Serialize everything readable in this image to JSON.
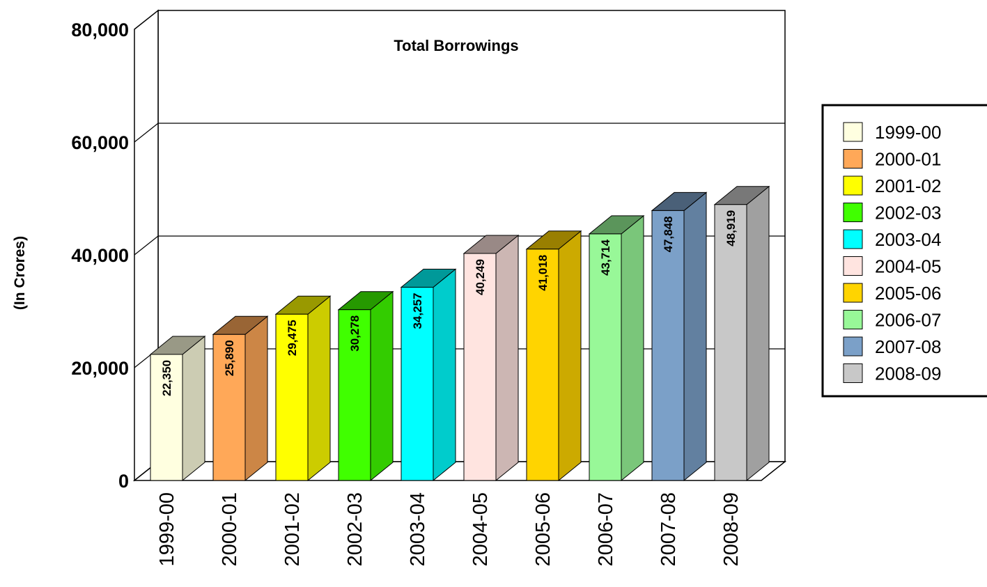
{
  "chart_data": {
    "type": "bar",
    "title": "Total Borrowings",
    "ylabel": "(In Crores)",
    "xlabel": "",
    "categories": [
      "1999-00",
      "2000-01",
      "2001-02",
      "2002-03",
      "2003-04",
      "2004-05",
      "2005-06",
      "2006-07",
      "2007-08",
      "2008-09"
    ],
    "values": [
      22350,
      25890,
      29475,
      30278,
      34257,
      40249,
      41018,
      43714,
      47848,
      48919
    ],
    "data_labels": [
      "22,350",
      "25,890",
      "29,475",
      "30,278",
      "34,257",
      "40,249",
      "41,018",
      "43,714",
      "47,848",
      "48,919"
    ],
    "ylim": [
      0,
      80000
    ],
    "yticks": [
      0,
      20000,
      40000,
      60000,
      80000
    ],
    "ytick_labels": [
      "0",
      "20,000",
      "40,000",
      "60,000",
      "80,000"
    ],
    "grid": true,
    "legend_position": "right",
    "colors": [
      "#FFFFE0",
      "#FFA858",
      "#FFFF00",
      "#40FF00",
      "#00FFFF",
      "#FFE4E0",
      "#FFD400",
      "#98F898",
      "#7BA0C8",
      "#C8C8C8"
    ]
  }
}
